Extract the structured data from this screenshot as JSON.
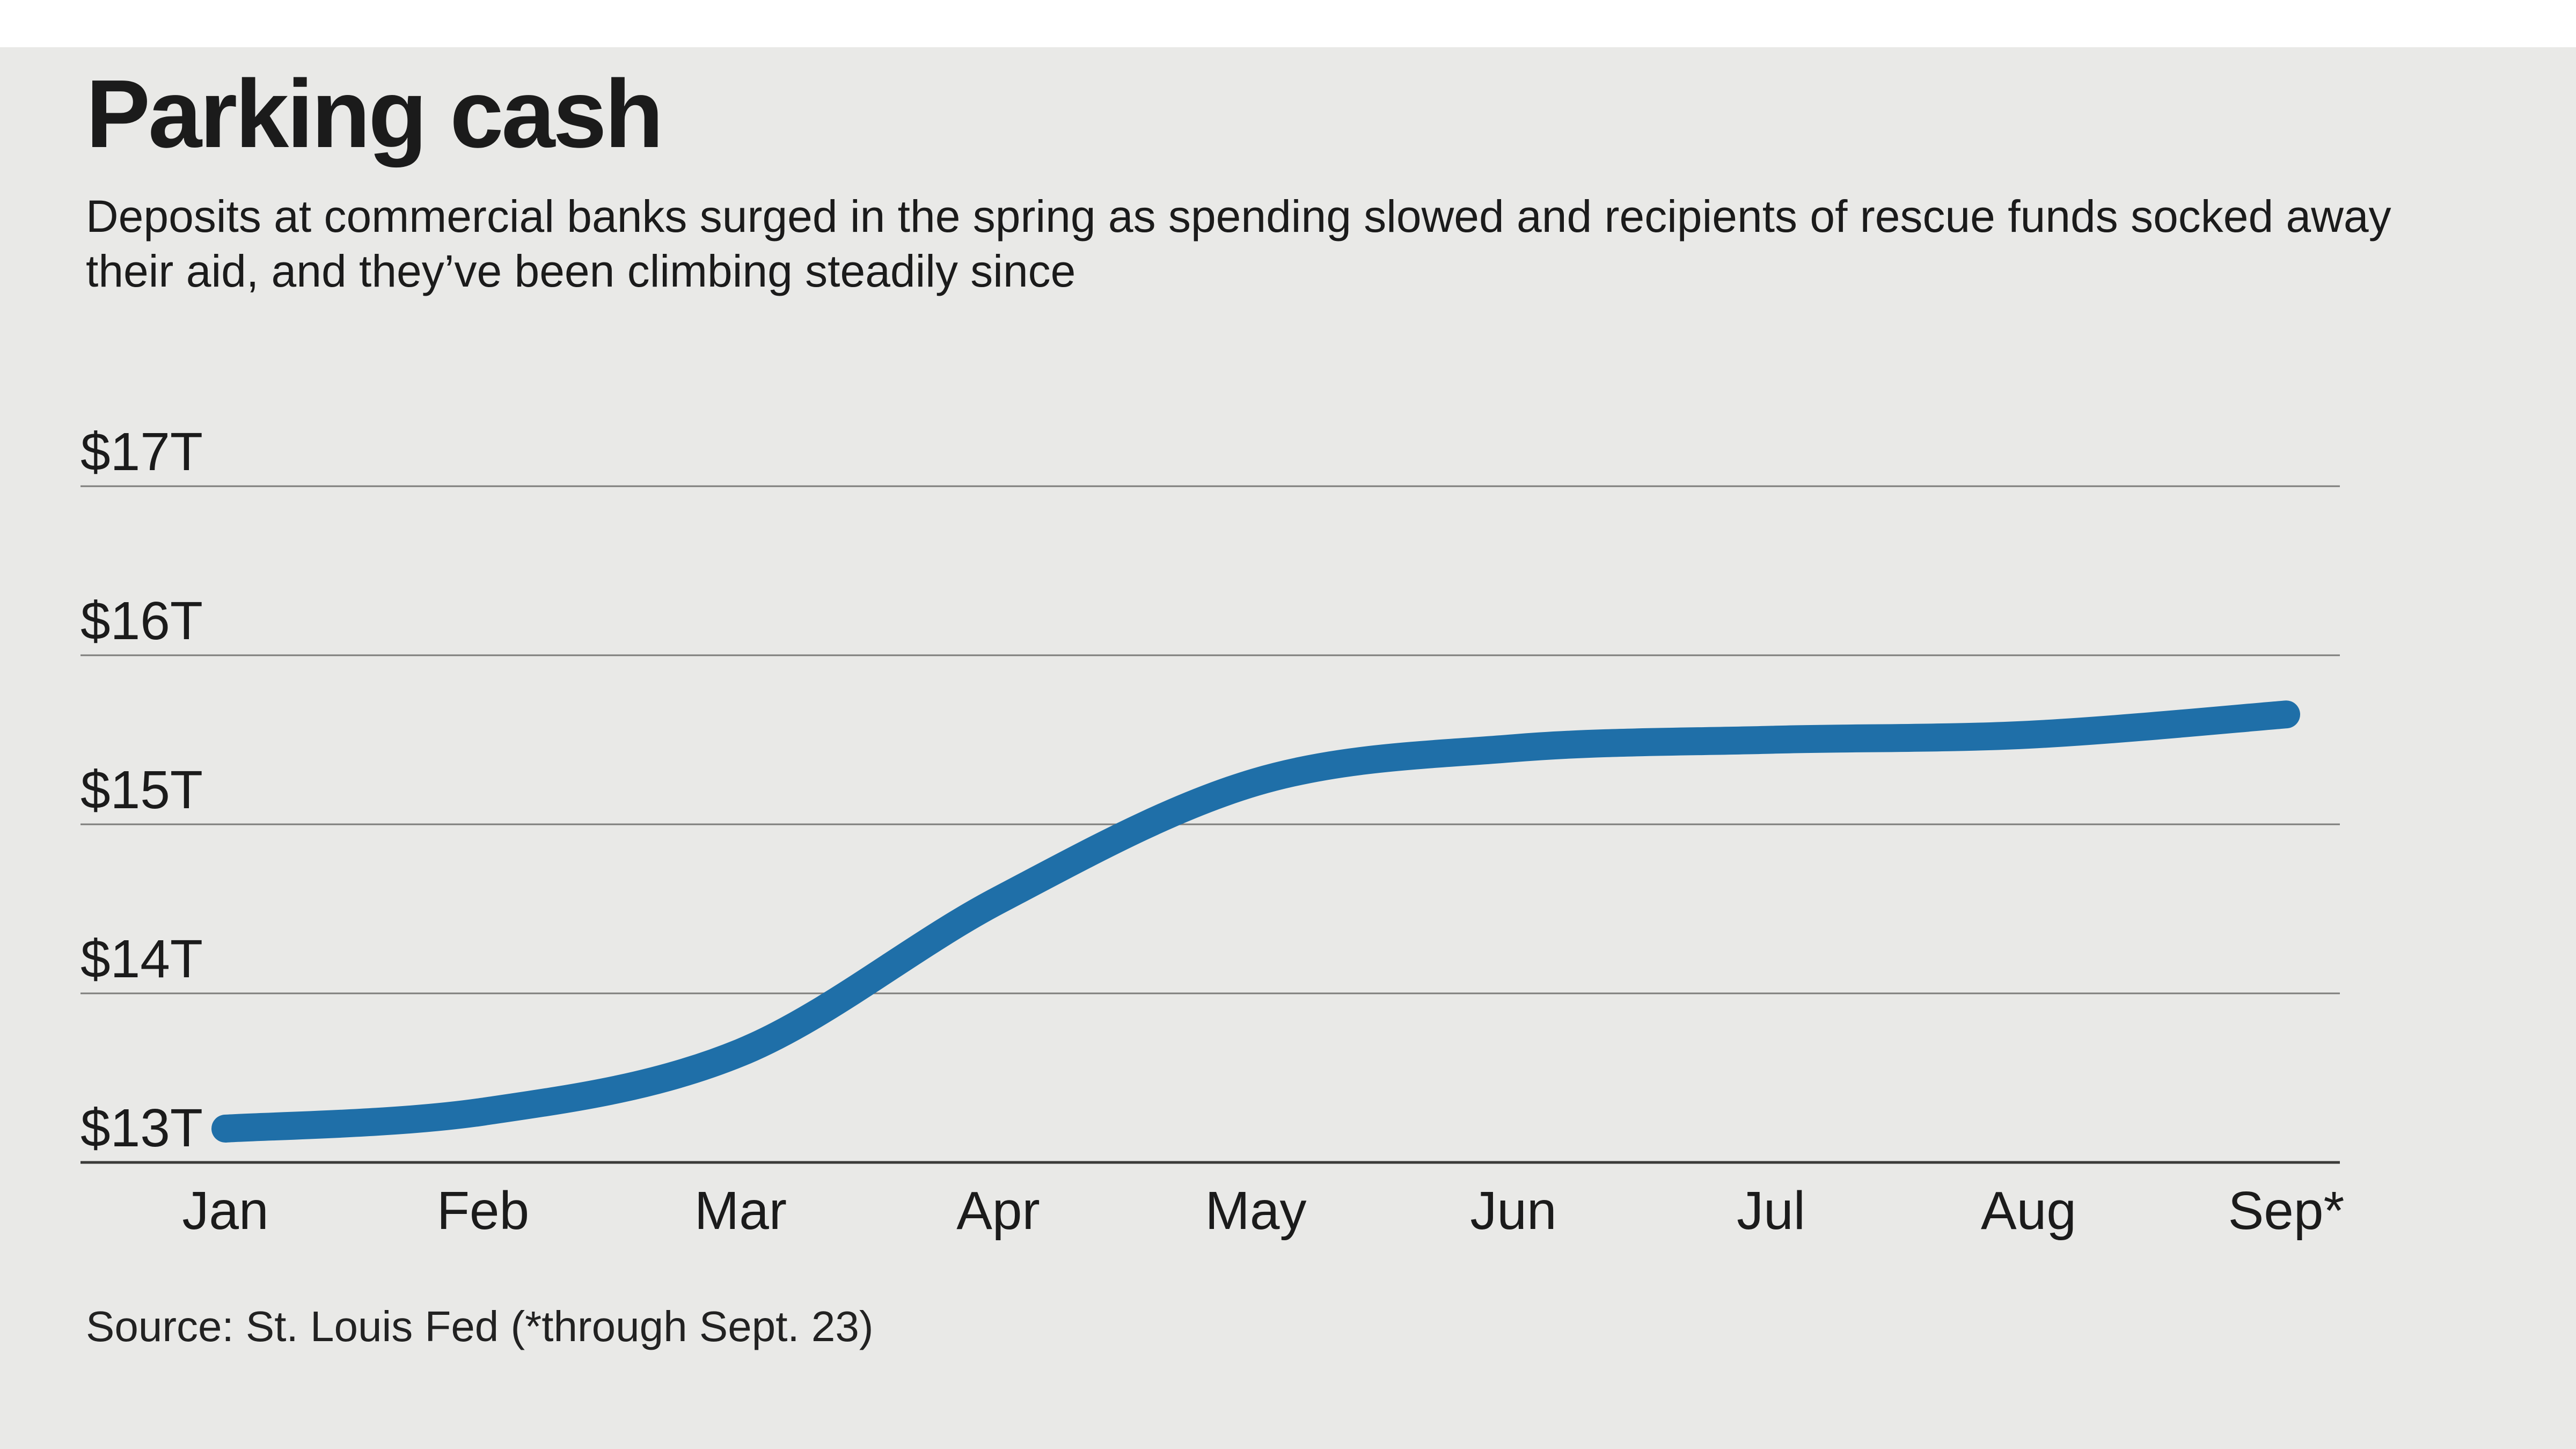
{
  "header": {
    "title": "Parking cash",
    "subtitle": "Deposits at commercial banks surged in the spring as spending slowed and recipients of rescue funds socked away their aid, and they’ve been climbing steadily since"
  },
  "footer": {
    "source": "Source: St. Louis Fed (*through Sept. 23)"
  },
  "colors": {
    "background": "#e9e9e7",
    "top_strip": "#ffffff",
    "line": "#1f6fa8",
    "grid": "#7d7d7b",
    "axis_baseline": "#3a3a38",
    "text": "#1b1b1b"
  },
  "chart_data": {
    "type": "line",
    "title": "Parking cash",
    "xlabel": "",
    "ylabel": "",
    "categories": [
      "Jan",
      "Feb",
      "Mar",
      "Apr",
      "May",
      "Jun",
      "Jul",
      "Aug",
      "Sep*"
    ],
    "series": [
      {
        "name": "Deposits at commercial banks ($ trillions)",
        "values": [
          13.2,
          13.3,
          13.65,
          14.55,
          15.25,
          15.45,
          15.5,
          15.53,
          15.65
        ]
      }
    ],
    "y_ticks": [
      {
        "label": "$17T",
        "value": 17
      },
      {
        "label": "$16T",
        "value": 16
      },
      {
        "label": "$15T",
        "value": 15
      },
      {
        "label": "$14T",
        "value": 14
      },
      {
        "label": "$13T",
        "value": 13
      }
    ],
    "ylim": [
      13,
      17
    ],
    "grid": true,
    "legend": "none"
  }
}
